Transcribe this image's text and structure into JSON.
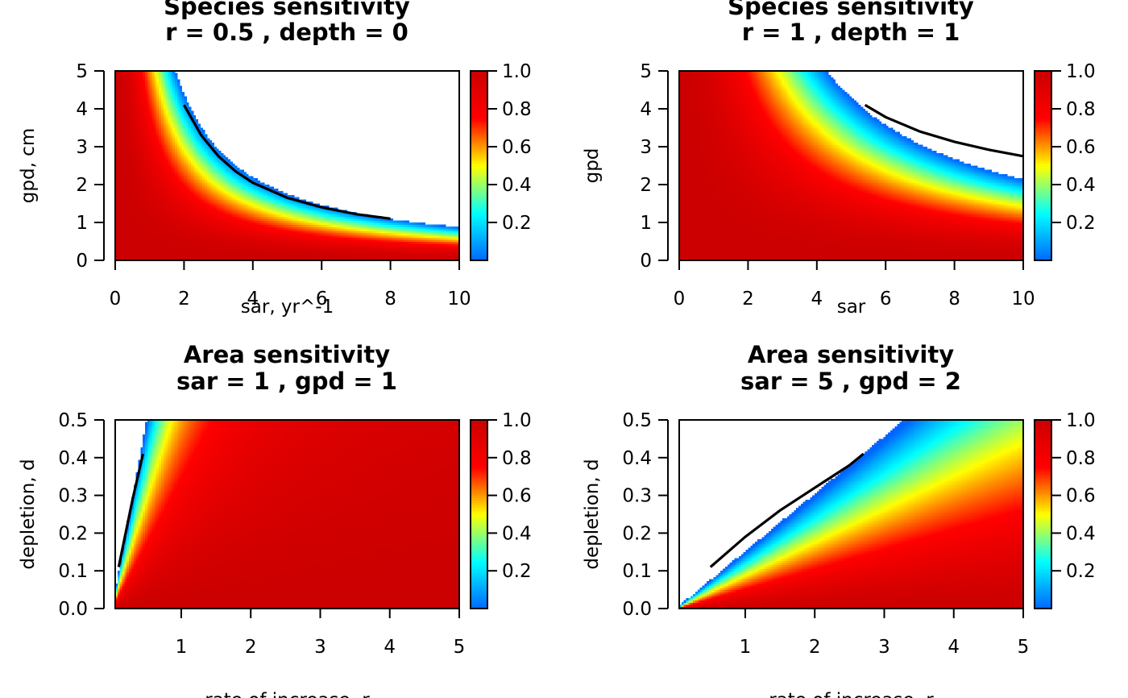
{
  "chart_data": [
    {
      "type": "heatmap",
      "panel": "top-left",
      "title": "Species sensitivity",
      "subtitle": "r = 0.5 , depth = 0",
      "xlabel": "sar, yr^-1",
      "ylabel": "gpd, cm",
      "xlim": [
        0,
        10
      ],
      "ylim": [
        0,
        5
      ],
      "x_ticks": [
        "0",
        "2",
        "4",
        "6",
        "8",
        "10"
      ],
      "y_ticks": [
        "0",
        "1",
        "2",
        "3",
        "4",
        "5"
      ],
      "colorbar": {
        "range": [
          0,
          1
        ],
        "ticks": [
          "0.2",
          "0.4",
          "0.6",
          "0.8",
          "1.0"
        ],
        "palette": [
          "#0066ff",
          "#00ffff",
          "#ffff00",
          "#ff0000",
          "#cc0000"
        ]
      },
      "contour_line": {
        "x": [
          2.0,
          2.5,
          3.0,
          3.5,
          4.0,
          5.0,
          6.0,
          7.0,
          8.0
        ],
        "y": [
          4.1,
          3.3,
          2.75,
          2.35,
          2.05,
          1.65,
          1.4,
          1.22,
          1.1
        ]
      },
      "model": {
        "form": "inverse",
        "r": 0.5,
        "depth": 0
      }
    },
    {
      "type": "heatmap",
      "panel": "top-right",
      "title": "Species sensitivity",
      "subtitle": "r = 1 , depth = 1",
      "xlabel": "sar",
      "ylabel": "gpd",
      "xlim": [
        0,
        10
      ],
      "ylim": [
        0,
        5
      ],
      "x_ticks": [
        "0",
        "2",
        "4",
        "6",
        "8",
        "10"
      ],
      "y_ticks": [
        "0",
        "1",
        "2",
        "3",
        "4",
        "5"
      ],
      "colorbar": {
        "range": [
          0,
          1
        ],
        "ticks": [
          "0.2",
          "0.4",
          "0.6",
          "0.8",
          "1.0"
        ],
        "palette": [
          "#0066ff",
          "#00ffff",
          "#ffff00",
          "#ff0000",
          "#cc0000"
        ]
      },
      "contour_line": {
        "x": [
          5.4,
          6.0,
          7.0,
          8.0,
          9.0,
          10.0
        ],
        "y": [
          4.1,
          3.78,
          3.4,
          3.13,
          2.92,
          2.75
        ]
      },
      "model": {
        "form": "inverse",
        "r": 1,
        "depth": 1
      }
    },
    {
      "type": "heatmap",
      "panel": "bottom-left",
      "title": "Area sensitivity",
      "subtitle": "sar = 1 , gpd = 1",
      "xlabel": "rate of increase, r",
      "ylabel": "depletion, d",
      "xlim": [
        0.05,
        5
      ],
      "ylim": [
        0,
        0.5
      ],
      "x_ticks": [
        "1",
        "2",
        "3",
        "4",
        "5"
      ],
      "y_ticks": [
        "0.0",
        "0.1",
        "0.2",
        "0.3",
        "0.4",
        "0.5"
      ],
      "colorbar": {
        "range": [
          0,
          1
        ],
        "ticks": [
          "0.2",
          "0.4",
          "0.6",
          "0.8",
          "1.0"
        ],
        "palette": [
          "#0066ff",
          "#00ffff",
          "#ffff00",
          "#ff0000",
          "#cc0000"
        ]
      },
      "contour_line": {
        "x": [
          0.1,
          0.2,
          0.3,
          0.4,
          0.45
        ],
        "y": [
          0.11,
          0.2,
          0.29,
          0.37,
          0.41
        ]
      },
      "model": {
        "form": "ratio",
        "sar": 1,
        "gpd": 1
      }
    },
    {
      "type": "heatmap",
      "panel": "bottom-right",
      "title": "Area sensitivity",
      "subtitle": "sar = 5 , gpd = 2",
      "xlabel": "rate of increase, r",
      "ylabel": "depletion, d",
      "xlim": [
        0.05,
        5
      ],
      "ylim": [
        0,
        0.5
      ],
      "x_ticks": [
        "1",
        "2",
        "3",
        "4",
        "5"
      ],
      "y_ticks": [
        "0.0",
        "0.1",
        "0.2",
        "0.3",
        "0.4",
        "0.5"
      ],
      "colorbar": {
        "range": [
          0,
          1
        ],
        "ticks": [
          "0.2",
          "0.4",
          "0.6",
          "0.8",
          "1.0"
        ],
        "palette": [
          "#0066ff",
          "#00ffff",
          "#ffff00",
          "#ff0000",
          "#cc0000"
        ]
      },
      "contour_line": {
        "x": [
          0.5,
          1.0,
          1.5,
          2.0,
          2.5,
          2.7
        ],
        "y": [
          0.11,
          0.19,
          0.26,
          0.32,
          0.38,
          0.41
        ]
      },
      "model": {
        "form": "ratio",
        "sar": 5,
        "gpd": 2
      }
    }
  ]
}
